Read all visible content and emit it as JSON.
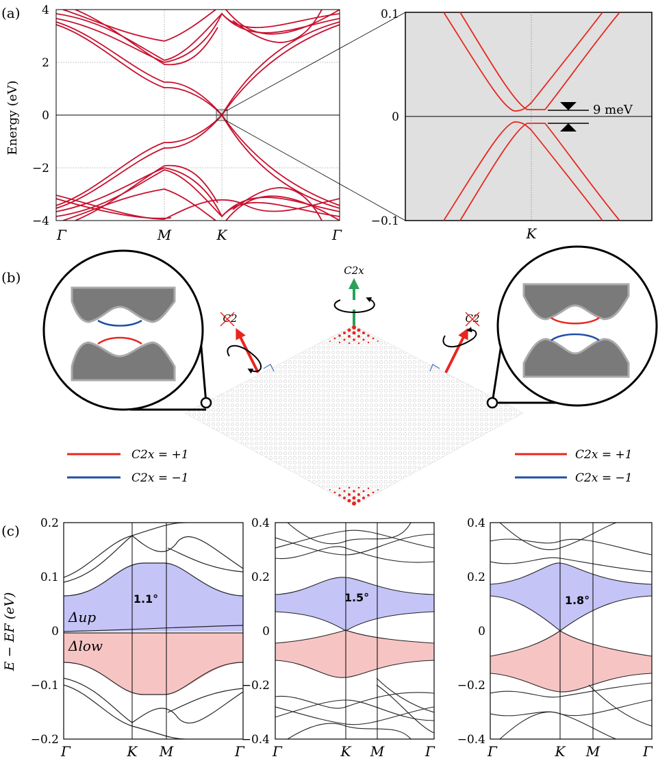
{
  "panel_labels": [
    "(a)",
    "(b)",
    "(c)"
  ],
  "colors": {
    "band_red": "#c8102e",
    "zoom_red": "#e8261f",
    "minus_blue": "#1f4fa6",
    "symmetry_green": "#2aa05a",
    "upper_fill": "#c4c4f7",
    "lower_fill": "#f7c4c4",
    "inset_bg": "#e0e0e0",
    "gray_band": "#7a7a7a"
  },
  "panel_a": {
    "ylabel": "Energy (eV)",
    "yticks": [
      "4",
      "2",
      "0",
      "−2",
      "−4"
    ],
    "ylim": [
      -4,
      4
    ],
    "xticks": [
      "Γ",
      "M",
      "K",
      "Γ"
    ],
    "inset": {
      "yticks": [
        "0.1",
        "0",
        "−0.1"
      ],
      "ylim": [
        -0.1,
        0.1
      ],
      "xtick": "K",
      "gap_label": "9 meV"
    }
  },
  "panel_b": {
    "axis_label": "C2x",
    "left_axis_label": "C2",
    "right_axis_label": "C2",
    "legend_left": [
      {
        "label": "C2x = +1",
        "color": "#e8261f"
      },
      {
        "label": "C2x = −1",
        "color": "#1f4fa6"
      }
    ],
    "legend_right": [
      {
        "label": "C2x = +1",
        "color": "#e8261f"
      },
      {
        "label": "C2x = −1",
        "color": "#1f4fa6"
      }
    ]
  },
  "panel_c": {
    "ylabel": "E − EF (eV)",
    "xticks": [
      "Γ",
      "K",
      "M",
      "Γ"
    ],
    "gap_up_label": "Δup",
    "gap_low_label": "Δlow",
    "subplots": [
      {
        "angle": "1.1°",
        "yticks": [
          "0.2",
          "0.1",
          "0",
          "−0.1",
          "−0.2"
        ],
        "ylim": [
          -0.2,
          0.2
        ]
      },
      {
        "angle": "1.5°",
        "yticks": [
          "0.4",
          "0.2",
          "0",
          "−0.2",
          "−0.4"
        ],
        "ylim": [
          -0.4,
          0.4
        ]
      },
      {
        "angle": "1.8°",
        "yticks": [
          "0.4",
          "0.2",
          "0",
          "−0.2",
          "−0.4"
        ],
        "ylim": [
          -0.4,
          0.4
        ]
      }
    ]
  }
}
